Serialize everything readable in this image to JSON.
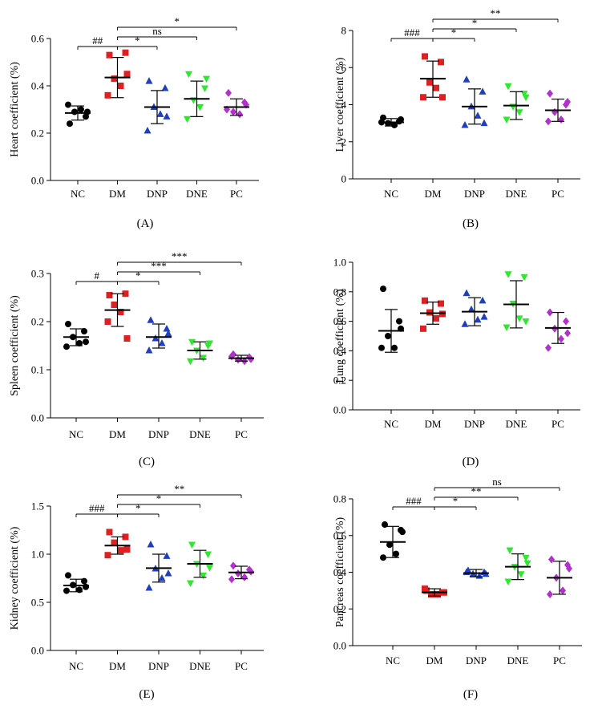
{
  "colors": {
    "NC": "#000000",
    "DM": "#e02020",
    "DNP": "#1f3fbf",
    "DNE": "#2ee82e",
    "PC": "#b42fcf"
  },
  "group_markers": {
    "NC": "circle",
    "DM": "square",
    "DNP": "triangle-up",
    "DNE": "triangle-down",
    "PC": "diamond"
  },
  "chart_data": [
    {
      "type": "scatter",
      "panel_label": "(A)",
      "ylabel": "Heart coefficient (%)",
      "categories": [
        "NC",
        "DM",
        "DNP",
        "DNE",
        "PC"
      ],
      "ylim": [
        0,
        0.6
      ],
      "yticks": [
        "0.0",
        "0.2",
        "0.4",
        "0.6"
      ],
      "tick_values": [
        0,
        0.2,
        0.4,
        0.6
      ],
      "grid": false,
      "groups": [
        {
          "name": "NC",
          "mean": 0.285,
          "sd_low": 0.255,
          "sd_high": 0.315,
          "points": [
            0.24,
            0.27,
            0.29,
            0.3,
            0.32,
            0.29
          ]
        },
        {
          "name": "DM",
          "mean": 0.435,
          "sd_low": 0.35,
          "sd_high": 0.52,
          "points": [
            0.53,
            0.54,
            0.43,
            0.4,
            0.36,
            0.45
          ]
        },
        {
          "name": "DNP",
          "mean": 0.31,
          "sd_low": 0.24,
          "sd_high": 0.38,
          "points": [
            0.42,
            0.39,
            0.31,
            0.28,
            0.21,
            0.27
          ]
        },
        {
          "name": "DNE",
          "mean": 0.345,
          "sd_low": 0.27,
          "sd_high": 0.42,
          "points": [
            0.45,
            0.39,
            0.34,
            0.31,
            0.26,
            0.43
          ]
        },
        {
          "name": "PC",
          "mean": 0.31,
          "sd_low": 0.275,
          "sd_high": 0.345,
          "points": [
            0.37,
            0.33,
            0.29,
            0.28,
            0.3,
            0.32
          ]
        }
      ],
      "significance": [
        {
          "from": "NC",
          "to": "DM",
          "label": "##",
          "level": 1
        },
        {
          "from": "DM",
          "to": "DNP",
          "label": "*",
          "level": 1
        },
        {
          "from": "DM",
          "to": "DNE",
          "label": "ns",
          "level": 2
        },
        {
          "from": "DM",
          "to": "PC",
          "label": "*",
          "level": 3
        }
      ]
    },
    {
      "type": "scatter",
      "panel_label": "(B)",
      "ylabel": "Liver coefficient (%)",
      "categories": [
        "NC",
        "DM",
        "DNP",
        "DNE",
        "PC"
      ],
      "ylim": [
        0,
        8
      ],
      "yticks": [
        "0",
        "2",
        "4",
        "6",
        "8"
      ],
      "tick_values": [
        0,
        2,
        4,
        6,
        8
      ],
      "grid": false,
      "groups": [
        {
          "name": "NC",
          "mean": 3.05,
          "sd_low": 2.85,
          "sd_high": 3.25,
          "points": [
            3.3,
            3.1,
            3.0,
            2.9,
            3.05,
            3.2
          ]
        },
        {
          "name": "DM",
          "mean": 5.4,
          "sd_low": 4.4,
          "sd_high": 6.35,
          "points": [
            6.6,
            6.3,
            5.2,
            4.9,
            4.4,
            4.4
          ]
        },
        {
          "name": "DNP",
          "mean": 3.9,
          "sd_low": 2.95,
          "sd_high": 4.85,
          "points": [
            5.35,
            4.7,
            3.9,
            3.4,
            2.9,
            3.0
          ]
        },
        {
          "name": "DNE",
          "mean": 3.95,
          "sd_low": 3.2,
          "sd_high": 4.7,
          "points": [
            5.0,
            4.6,
            3.9,
            3.6,
            3.2,
            4.4
          ]
        },
        {
          "name": "PC",
          "mean": 3.7,
          "sd_low": 3.1,
          "sd_high": 4.3,
          "points": [
            4.6,
            4.0,
            3.6,
            3.2,
            3.1,
            4.15
          ]
        }
      ],
      "significance": [
        {
          "from": "NC",
          "to": "DM",
          "label": "###",
          "level": 1
        },
        {
          "from": "DM",
          "to": "DNP",
          "label": "*",
          "level": 1
        },
        {
          "from": "DM",
          "to": "DNE",
          "label": "*",
          "level": 2
        },
        {
          "from": "DM",
          "to": "PC",
          "label": "**",
          "level": 3
        }
      ]
    },
    {
      "type": "scatter",
      "panel_label": "(C)",
      "ylabel": "Spleen coefficient (%)",
      "categories": [
        "NC",
        "DM",
        "DNP",
        "DNE",
        "PC"
      ],
      "ylim": [
        0,
        0.3
      ],
      "yticks": [
        "0.0",
        "0.1",
        "0.2",
        "0.3"
      ],
      "tick_values": [
        0,
        0.1,
        0.2,
        0.3
      ],
      "grid": false,
      "groups": [
        {
          "name": "NC",
          "mean": 0.168,
          "sd_low": 0.15,
          "sd_high": 0.185,
          "points": [
            0.195,
            0.18,
            0.168,
            0.155,
            0.148,
            0.158
          ]
        },
        {
          "name": "DM",
          "mean": 0.224,
          "sd_low": 0.19,
          "sd_high": 0.258,
          "points": [
            0.255,
            0.258,
            0.235,
            0.22,
            0.2,
            0.165
          ]
        },
        {
          "name": "DNP",
          "mean": 0.168,
          "sd_low": 0.145,
          "sd_high": 0.195,
          "points": [
            0.203,
            0.185,
            0.165,
            0.155,
            0.14,
            0.175
          ]
        },
        {
          "name": "DNE",
          "mean": 0.14,
          "sd_low": 0.122,
          "sd_high": 0.158,
          "points": [
            0.158,
            0.15,
            0.14,
            0.125,
            0.118,
            0.155
          ]
        },
        {
          "name": "PC",
          "mean": 0.124,
          "sd_low": 0.118,
          "sd_high": 0.13,
          "points": [
            0.132,
            0.126,
            0.121,
            0.118,
            0.128,
            0.122
          ]
        }
      ],
      "significance": [
        {
          "from": "NC",
          "to": "DM",
          "label": "#",
          "level": 1
        },
        {
          "from": "DM",
          "to": "DNP",
          "label": "*",
          "level": 1
        },
        {
          "from": "DM",
          "to": "DNE",
          "label": "***",
          "level": 2
        },
        {
          "from": "DM",
          "to": "PC",
          "label": "***",
          "level": 3
        }
      ]
    },
    {
      "type": "scatter",
      "panel_label": "(D)",
      "ylabel": "Lung coefficient (%)",
      "categories": [
        "NC",
        "DM",
        "DNP",
        "DNE",
        "PC"
      ],
      "ylim": [
        0,
        1.0
      ],
      "yticks": [
        "0.0",
        "0.2",
        "0.4",
        "0.6",
        "0.8",
        "1.0"
      ],
      "tick_values": [
        0,
        0.2,
        0.4,
        0.6,
        0.8,
        1.0
      ],
      "grid": false,
      "groups": [
        {
          "name": "NC",
          "mean": 0.535,
          "sd_low": 0.39,
          "sd_high": 0.68,
          "points": [
            0.82,
            0.6,
            0.5,
            0.42,
            0.42,
            0.55
          ]
        },
        {
          "name": "DM",
          "mean": 0.655,
          "sd_low": 0.58,
          "sd_high": 0.73,
          "points": [
            0.74,
            0.72,
            0.66,
            0.62,
            0.55,
            0.65
          ]
        },
        {
          "name": "DNP",
          "mean": 0.665,
          "sd_low": 0.57,
          "sd_high": 0.76,
          "points": [
            0.79,
            0.74,
            0.68,
            0.61,
            0.58,
            0.63
          ]
        },
        {
          "name": "DNE",
          "mean": 0.715,
          "sd_low": 0.555,
          "sd_high": 0.875,
          "points": [
            0.92,
            0.9,
            0.72,
            0.62,
            0.56,
            0.6
          ]
        },
        {
          "name": "PC",
          "mean": 0.555,
          "sd_low": 0.45,
          "sd_high": 0.66,
          "points": [
            0.66,
            0.6,
            0.55,
            0.48,
            0.42,
            0.52
          ]
        }
      ],
      "significance": []
    },
    {
      "type": "scatter",
      "panel_label": "(E)",
      "ylabel": "Kidney coefficient (%)",
      "categories": [
        "NC",
        "DM",
        "DNP",
        "DNE",
        "PC"
      ],
      "ylim": [
        0,
        1.5
      ],
      "yticks": [
        "0.0",
        "0.5",
        "1.0",
        "1.5"
      ],
      "tick_values": [
        0,
        0.5,
        1.0,
        1.5
      ],
      "grid": false,
      "groups": [
        {
          "name": "NC",
          "mean": 0.675,
          "sd_low": 0.61,
          "sd_high": 0.74,
          "points": [
            0.78,
            0.72,
            0.68,
            0.63,
            0.62,
            0.66
          ]
        },
        {
          "name": "DM",
          "mean": 1.09,
          "sd_low": 1.0,
          "sd_high": 1.18,
          "points": [
            1.23,
            1.18,
            1.12,
            1.04,
            0.99,
            1.05
          ]
        },
        {
          "name": "DNP",
          "mean": 0.855,
          "sd_low": 0.71,
          "sd_high": 1.0,
          "points": [
            1.1,
            0.98,
            0.85,
            0.75,
            0.65,
            0.8
          ]
        },
        {
          "name": "DNE",
          "mean": 0.9,
          "sd_low": 0.76,
          "sd_high": 1.04,
          "points": [
            1.1,
            1.0,
            0.9,
            0.78,
            0.7,
            0.86
          ]
        },
        {
          "name": "PC",
          "mean": 0.81,
          "sd_low": 0.745,
          "sd_high": 0.875,
          "points": [
            0.88,
            0.84,
            0.8,
            0.76,
            0.74,
            0.82
          ]
        }
      ],
      "significance": [
        {
          "from": "NC",
          "to": "DM",
          "label": "###",
          "level": 1
        },
        {
          "from": "DM",
          "to": "DNP",
          "label": "*",
          "level": 1
        },
        {
          "from": "DM",
          "to": "DNE",
          "label": "*",
          "level": 2
        },
        {
          "from": "DM",
          "to": "PC",
          "label": "**",
          "level": 3
        }
      ]
    },
    {
      "type": "scatter",
      "panel_label": "(F)",
      "ylabel": "Pancreas coefficient (%)",
      "categories": [
        "NC",
        "DM",
        "DNP",
        "DNE",
        "PC"
      ],
      "ylim": [
        0,
        0.8
      ],
      "yticks": [
        "0.0",
        "0.2",
        "0.4",
        "0.6",
        "0.8"
      ],
      "tick_values": [
        0,
        0.2,
        0.4,
        0.6,
        0.8
      ],
      "grid": false,
      "groups": [
        {
          "name": "NC",
          "mean": 0.565,
          "sd_low": 0.48,
          "sd_high": 0.65,
          "points": [
            0.66,
            0.63,
            0.55,
            0.5,
            0.48,
            0.62
          ]
        },
        {
          "name": "DM",
          "mean": 0.29,
          "sd_low": 0.27,
          "sd_high": 0.31,
          "points": [
            0.3,
            0.29,
            0.28,
            0.28,
            0.31,
            0.29
          ]
        },
        {
          "name": "DNP",
          "mean": 0.395,
          "sd_low": 0.375,
          "sd_high": 0.415,
          "points": [
            0.41,
            0.4,
            0.39,
            0.38,
            0.4,
            0.39
          ]
        },
        {
          "name": "DNE",
          "mean": 0.43,
          "sd_low": 0.36,
          "sd_high": 0.5,
          "points": [
            0.52,
            0.48,
            0.43,
            0.39,
            0.35,
            0.45
          ]
        },
        {
          "name": "PC",
          "mean": 0.37,
          "sd_low": 0.28,
          "sd_high": 0.46,
          "points": [
            0.47,
            0.44,
            0.37,
            0.3,
            0.28,
            0.42
          ]
        }
      ],
      "significance": [
        {
          "from": "NC",
          "to": "DM",
          "label": "###",
          "level": 1
        },
        {
          "from": "DM",
          "to": "DNP",
          "label": "*",
          "level": 1
        },
        {
          "from": "DM",
          "to": "DNE",
          "label": "**",
          "level": 2
        },
        {
          "from": "DM",
          "to": "PC",
          "label": "ns",
          "level": 3
        }
      ]
    }
  ]
}
